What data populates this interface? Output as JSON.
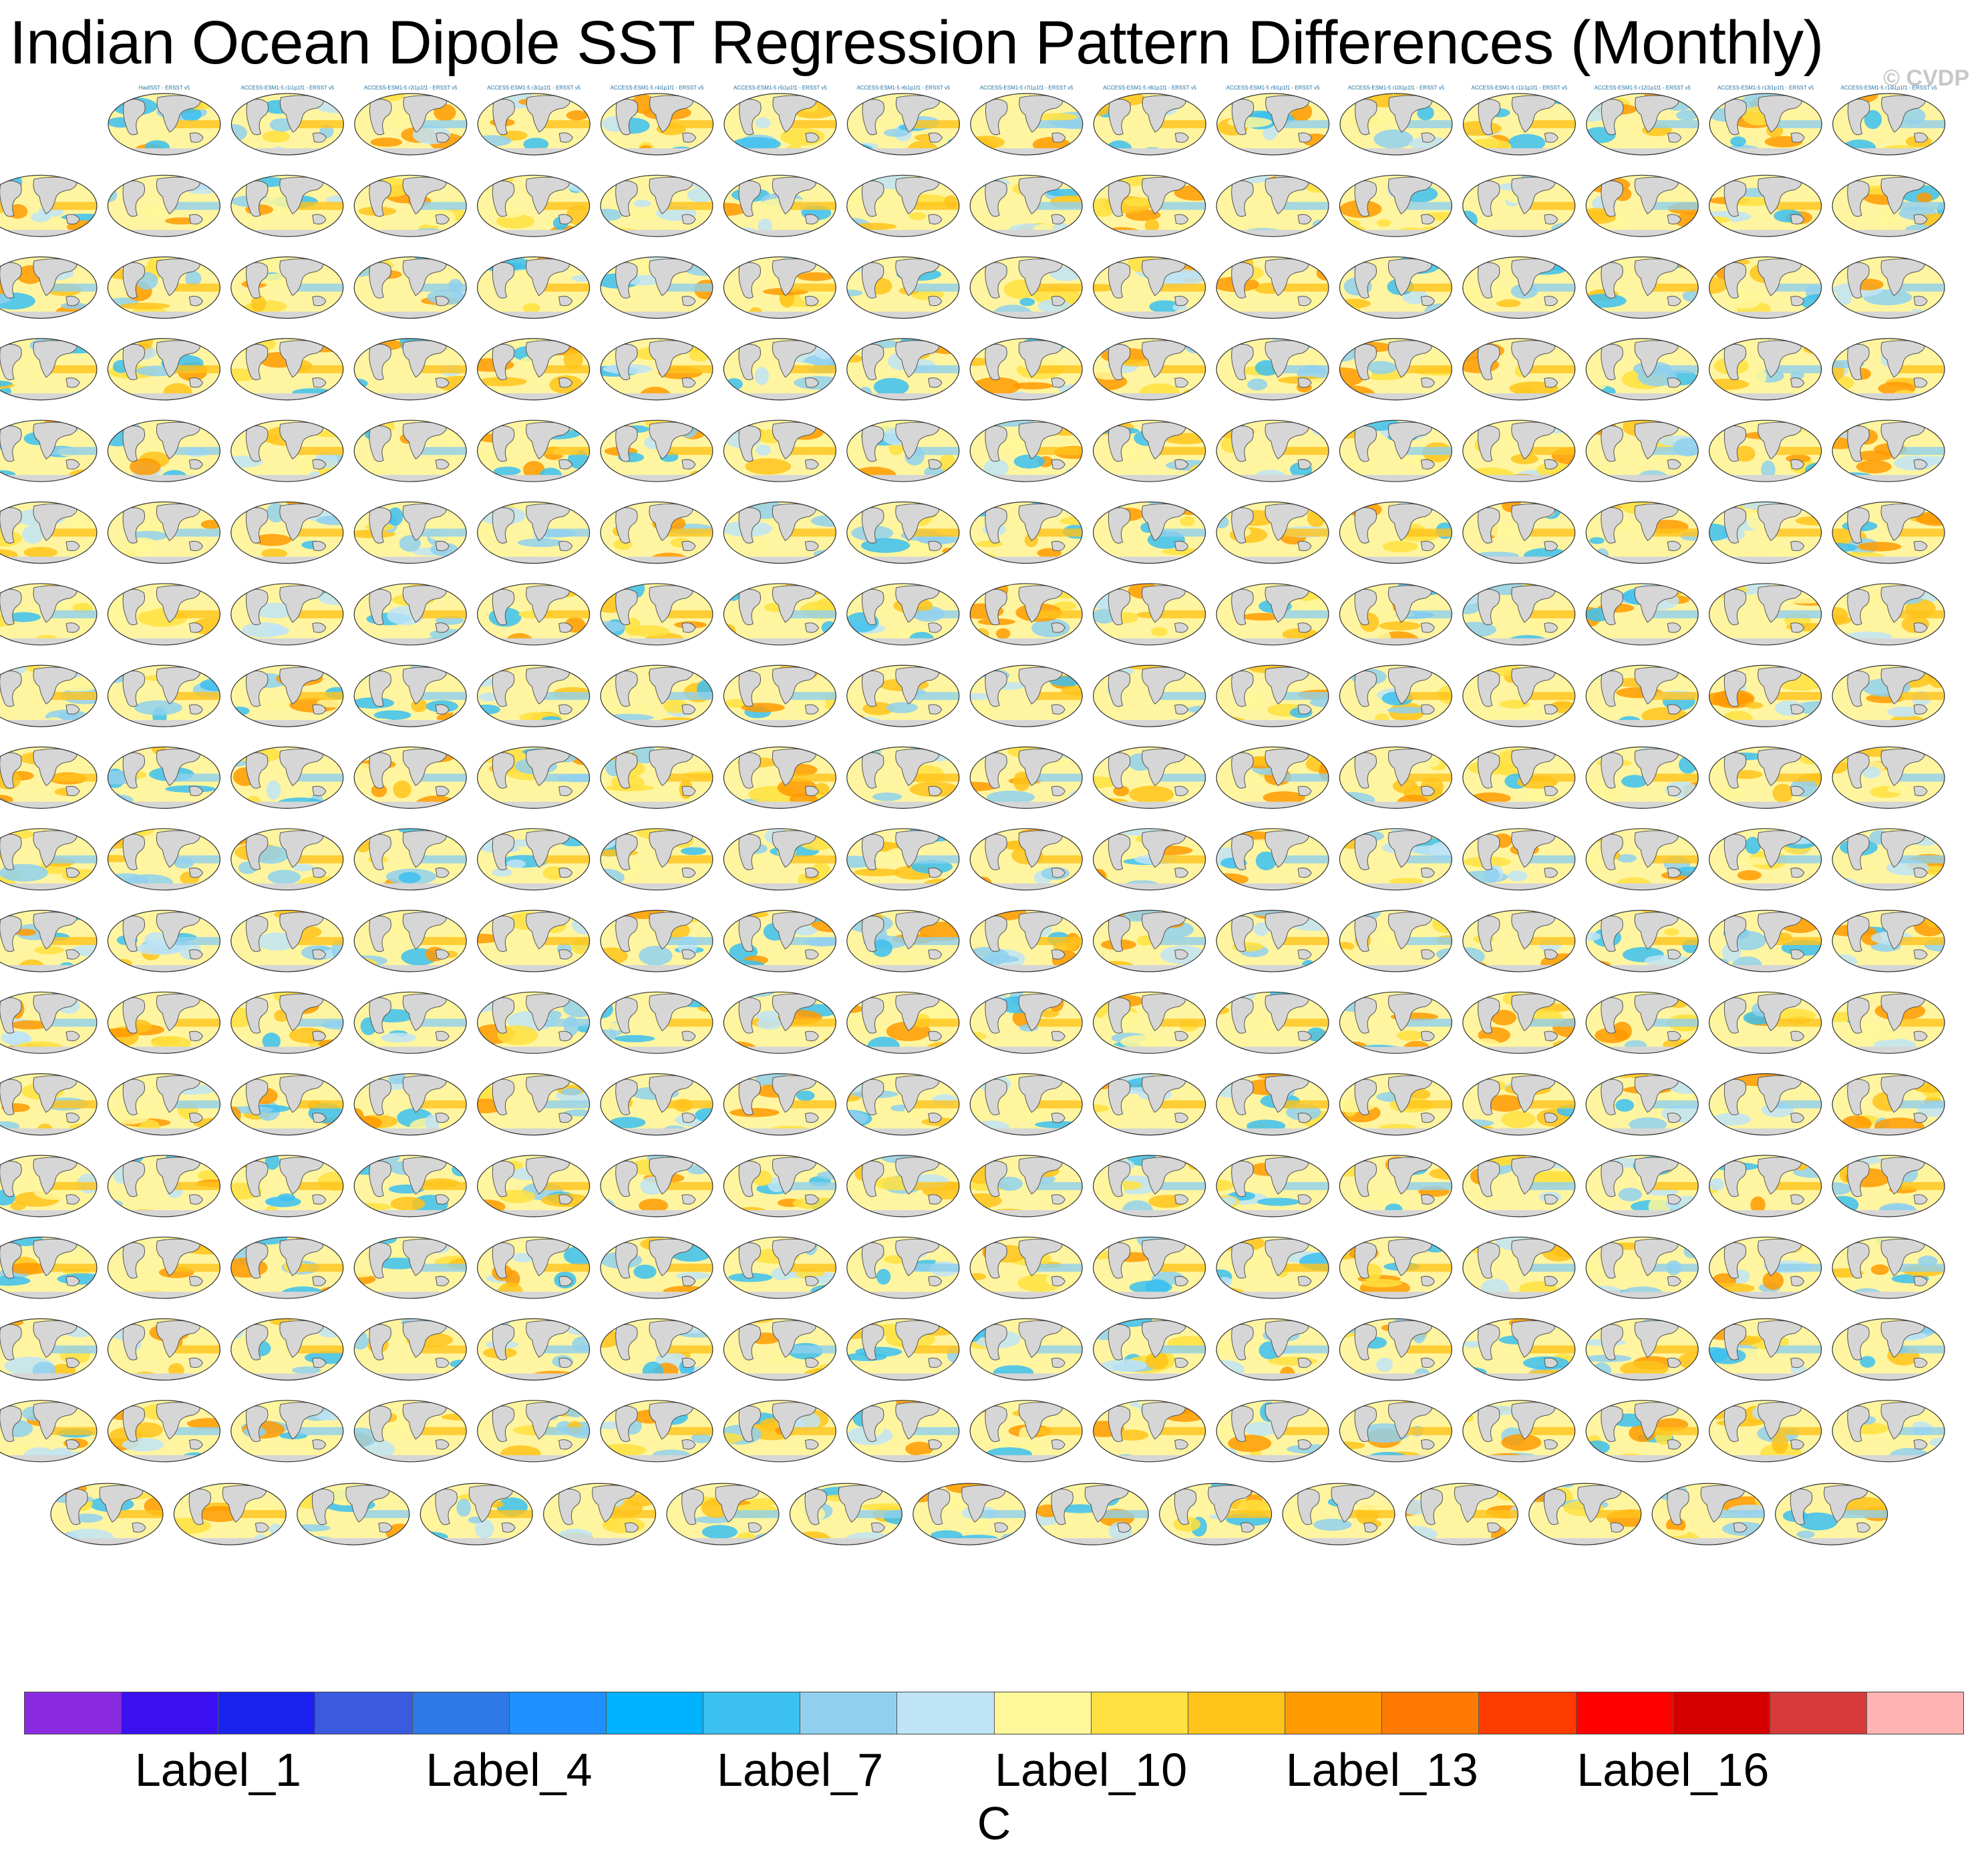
{
  "title": "Indian Ocean Dipole SST Regression Pattern Differences (Monthly)",
  "watermark": "© CVDP",
  "chart_data": {
    "type": "heatmap",
    "title": "Indian Ocean Dipole SST Regression Pattern Differences (Monthly)",
    "description_kind": "grid of small-multiple global SST regression-difference maps (model member minus ERSST v5)",
    "colorbar": {
      "units": "C",
      "num_bins": 20,
      "colors": [
        "#8a2be2",
        "#3a10f0",
        "#1a22f0",
        "#3a5ae0",
        "#2e78e8",
        "#1e90ff",
        "#00b2ff",
        "#3cc0f0",
        "#90d0ee",
        "#bfe4f6",
        "#fff799",
        "#ffe040",
        "#ffc31a",
        "#ff9a00",
        "#ff7a00",
        "#ff3c00",
        "#ff0000",
        "#d40000",
        "#d63a3a",
        "#ffb3b3"
      ],
      "tick_labels": [
        {
          "label": "Label_1",
          "bin_boundary": 2
        },
        {
          "label": "Label_4",
          "bin_boundary": 5
        },
        {
          "label": "Label_7",
          "bin_boundary": 8
        },
        {
          "label": "Label_10",
          "bin_boundary": 11
        },
        {
          "label": "Label_13",
          "bin_boundary": 14
        },
        {
          "label": "Label_16",
          "bin_boundary": 17
        }
      ]
    },
    "panel_rows": [
      15,
      16,
      16,
      16,
      16,
      16,
      16,
      16,
      16,
      16,
      16,
      16,
      16,
      16,
      16,
      16,
      16,
      15
    ],
    "panel_subtitles_first_rows": [
      [
        "HadISST - ERSST v5",
        "ACCESS-ESM1-5 r1i1p1f1 - ERSST v5",
        "ACCESS-ESM1-5 r2i1p1f1 - ERSST v5",
        "ACCESS-ESM1-5 r3i1p1f1 - ERSST v5",
        "ACCESS-ESM1-5 r4i1p1f1 - ERSST v5",
        "ACCESS-ESM1-5 r5i1p1f1 - ERSST v5",
        "ACCESS-ESM1-5 r6i1p1f1 - ERSST v5",
        "ACCESS-ESM1-5 r7i1p1f1 - ERSST v5",
        "ACCESS-ESM1-5 r8i1p1f1 - ERSST v5",
        "ACCESS-ESM1-5 r9i1p1f1 - ERSST v5",
        "ACCESS-ESM1-5 r10i1p1f1 - ERSST v5",
        "ACCESS-ESM1-5 r11i1p1f1 - ERSST v5",
        "ACCESS-ESM1-5 r12i1p1f1 - ERSST v5",
        "ACCESS-ESM1-5 r13i1p1f1 - ERSST v5",
        "ACCESS-ESM1-5 r14i1p1f1 - ERSST v5"
      ]
    ]
  }
}
